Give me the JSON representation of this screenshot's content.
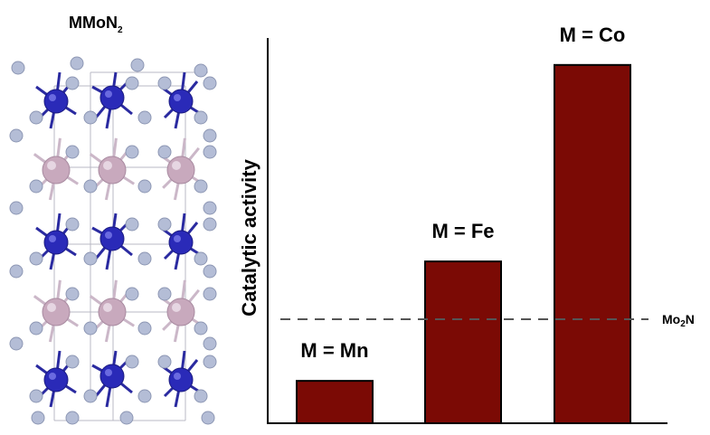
{
  "structure": {
    "title_main": "MMoN",
    "title_sub": "2"
  },
  "chart_data": {
    "type": "bar",
    "categories": [
      "M = Mn",
      "M = Fe",
      "M = Co"
    ],
    "values": [
      0.11,
      0.42,
      0.93
    ],
    "ylabel": "Catalytic activity",
    "ylim": [
      0,
      1
    ],
    "grid": false,
    "reference": {
      "label_main": "Mo",
      "label_sub": "2",
      "label_end": "N",
      "value": 0.27
    },
    "colors": {
      "bar": "#7b0a05",
      "reference_line": "#555555"
    }
  }
}
